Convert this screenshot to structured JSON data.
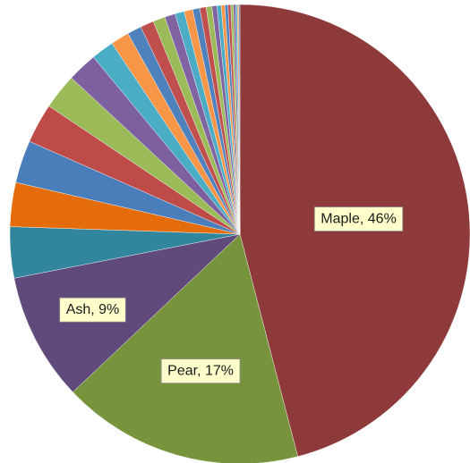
{
  "chart_data": {
    "type": "pie",
    "title": "",
    "start_angle_deg": 0,
    "direction": "clockwise",
    "slices": [
      {
        "label": "Maple",
        "value": 46,
        "display": "Maple, 46%",
        "color": "#8e3a3a"
      },
      {
        "label": "Pear",
        "value": 17,
        "display": "Pear, 17%",
        "color": "#77933c"
      },
      {
        "label": "Ash",
        "value": 9,
        "display": "Ash, 9%",
        "color": "#604a7b"
      },
      {
        "label": "",
        "value": 3.6,
        "color": "#31859c"
      },
      {
        "label": "",
        "value": 3.1,
        "color": "#e46c0a"
      },
      {
        "label": "",
        "value": 3.0,
        "color": "#4a7ebb"
      },
      {
        "label": "",
        "value": 2.8,
        "color": "#be4b48"
      },
      {
        "label": "",
        "value": 2.5,
        "color": "#9bbb59"
      },
      {
        "label": "",
        "value": 2.1,
        "color": "#7d60a0"
      },
      {
        "label": "",
        "value": 1.6,
        "color": "#4bacc6"
      },
      {
        "label": "",
        "value": 1.3,
        "color": "#f79646"
      },
      {
        "label": "",
        "value": 1.0,
        "color": "#4f81bd"
      },
      {
        "label": "",
        "value": 0.95,
        "color": "#c0504d"
      },
      {
        "label": "",
        "value": 0.85,
        "color": "#9bbb59"
      },
      {
        "label": "",
        "value": 0.75,
        "color": "#8064a2"
      },
      {
        "label": "",
        "value": 0.65,
        "color": "#4bacc6"
      },
      {
        "label": "",
        "value": 0.6,
        "color": "#f79646"
      },
      {
        "label": "",
        "value": 0.5,
        "color": "#4f81bd"
      },
      {
        "label": "",
        "value": 0.45,
        "color": "#c0504d"
      },
      {
        "label": "",
        "value": 0.4,
        "color": "#9bbb59"
      },
      {
        "label": "",
        "value": 0.35,
        "color": "#8064a2"
      },
      {
        "label": "",
        "value": 0.3,
        "color": "#4bacc6"
      },
      {
        "label": "",
        "value": 0.25,
        "color": "#f79646"
      },
      {
        "label": "",
        "value": 0.22,
        "color": "#4f81bd"
      },
      {
        "label": "",
        "value": 0.2,
        "color": "#c0504d"
      },
      {
        "label": "",
        "value": 0.18,
        "color": "#9bbb59"
      },
      {
        "label": "",
        "value": 0.15,
        "color": "#8064a2"
      },
      {
        "label": "",
        "value": 0.12,
        "color": "#4bacc6"
      },
      {
        "label": "",
        "value": 0.1,
        "color": "#f79646"
      },
      {
        "label": "",
        "value": 0.08,
        "color": "#4f81bd"
      }
    ]
  }
}
